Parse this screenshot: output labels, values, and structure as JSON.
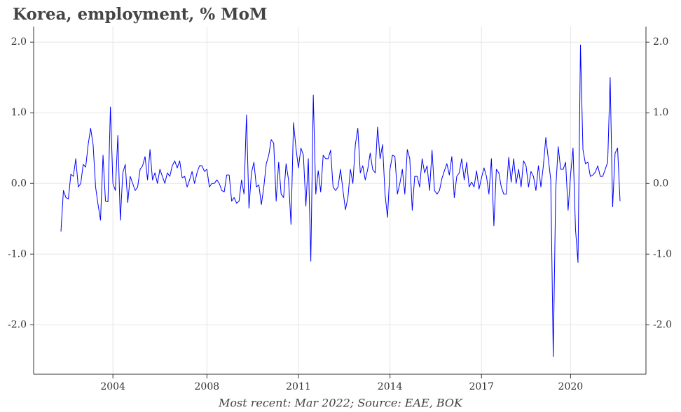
{
  "chart_data": {
    "type": "line",
    "title": "Korea, employment, % MoM",
    "caption": "Most recent: Mar 2022; Source: EAE, BOK",
    "categories": [
      null,
      null,
      null,
      null,
      null,
      null,
      null,
      null,
      null,
      null,
      null,
      null,
      null,
      null,
      null,
      null,
      null,
      null,
      null,
      null,
      null,
      "2004",
      null,
      null,
      null,
      null,
      null,
      null,
      null,
      null,
      null,
      null,
      null,
      null,
      null,
      null,
      null,
      null,
      null,
      null,
      null,
      null,
      null,
      null,
      null,
      null,
      null,
      null,
      null,
      null,
      null,
      null,
      null,
      null,
      null,
      null,
      null,
      null,
      null,
      "2008",
      null,
      null,
      null,
      null,
      null,
      null,
      null,
      null,
      null,
      null,
      null,
      null,
      null,
      null,
      null,
      null,
      null,
      null,
      null,
      null,
      null,
      null,
      null,
      null,
      null,
      null,
      null,
      null,
      null,
      null,
      null,
      null,
      null,
      null,
      null,
      null,
      "2011",
      null,
      null,
      null,
      null,
      null,
      null,
      null,
      null,
      null,
      null,
      null,
      null,
      null,
      null,
      null,
      null,
      null,
      null,
      null,
      null,
      null,
      null,
      null,
      null,
      null,
      null,
      null,
      null,
      null,
      null,
      null,
      null,
      null,
      null,
      null,
      null,
      "2014",
      null,
      null,
      null,
      null,
      null,
      null,
      null,
      null,
      null,
      null,
      null,
      null,
      null,
      null,
      null,
      null,
      null,
      null,
      null,
      null,
      null,
      null,
      null,
      null,
      null,
      null,
      null,
      null,
      null,
      null,
      null,
      null,
      null,
      null,
      null,
      null,
      "2017",
      null,
      null,
      null,
      null,
      null,
      null,
      null,
      null,
      null,
      null,
      null,
      null,
      null,
      null,
      null,
      null,
      null,
      null,
      null,
      null,
      null,
      null,
      null,
      null,
      null,
      null,
      null,
      null,
      null,
      null,
      null,
      null,
      null,
      null,
      null,
      "2020",
      null,
      null,
      null,
      null,
      null,
      null,
      null,
      null,
      null,
      null,
      null,
      null,
      null,
      null,
      null,
      null,
      null,
      null,
      null,
      null
    ],
    "series": [
      {
        "color": "#0000ff",
        "values": [
          -0.68,
          -0.1,
          -0.2,
          -0.22,
          0.13,
          0.1,
          0.35,
          -0.05,
          0,
          0.27,
          0.23,
          0.55,
          0.78,
          0.55,
          -0.05,
          -0.3,
          -0.52,
          0.4,
          -0.25,
          -0.26,
          1.08,
          0,
          -0.1,
          0.68,
          -0.52,
          0.15,
          0.27,
          -0.27,
          0.1,
          0,
          -0.1,
          -0.05,
          0.2,
          0.25,
          0.38,
          0.05,
          0.48,
          0.05,
          0.15,
          0,
          0.2,
          0.1,
          0,
          0.15,
          0.1,
          0.25,
          0.32,
          0.22,
          0.32,
          0.08,
          0.1,
          -0.05,
          0.05,
          0.17,
          0,
          0.15,
          0.25,
          0.25,
          0.17,
          0.2,
          -0.05,
          0,
          0,
          0.05,
          0,
          -0.1,
          -0.12,
          0.12,
          0.12,
          -0.25,
          -0.2,
          -0.28,
          -0.25,
          0.05,
          -0.15,
          0.97,
          -0.35,
          0.15,
          0.3,
          -0.05,
          -0.02,
          -0.3,
          -0.05,
          0.28,
          0.4,
          0.62,
          0.57,
          -0.25,
          0.3,
          -0.15,
          -0.2,
          0.28,
          0.05,
          -0.58,
          0.86,
          0.5,
          0.22,
          0.5,
          0.4,
          -0.32,
          0.35,
          -1.1,
          1.25,
          -0.15,
          0.18,
          -0.12,
          0.4,
          0.35,
          0.35,
          0.47,
          -0.05,
          -0.1,
          -0.05,
          0.2,
          -0.1,
          -0.37,
          -0.2,
          0.2,
          0,
          0.55,
          0.78,
          0.15,
          0.25,
          0.05,
          0.2,
          0.43,
          0.2,
          0.15,
          0.8,
          0.35,
          0.55,
          -0.15,
          -0.48,
          0.2,
          0.4,
          0.38,
          -0.15,
          0,
          0.2,
          -0.15,
          0.48,
          0.35,
          -0.38,
          0.1,
          0.1,
          -0.05,
          0.35,
          0.15,
          0.25,
          -0.1,
          0.47,
          -0.1,
          -0.15,
          -0.1,
          0.07,
          0.18,
          0.28,
          0.12,
          0.38,
          -0.2,
          0.1,
          0.15,
          0.35,
          0.05,
          0.3,
          -0.05,
          0.02,
          -0.05,
          0.18,
          -0.08,
          0.08,
          0.22,
          0.1,
          -0.15,
          0.35,
          -0.6,
          0.2,
          0.15,
          -0.05,
          -0.15,
          -0.15,
          0.37,
          0.02,
          0.35,
          0,
          0.2,
          -0.05,
          0.32,
          0.25,
          -0.05,
          0.17,
          0.1,
          -0.1,
          0.25,
          -0.05,
          0.25,
          0.65,
          0.35,
          0.05,
          -2.45,
          -0.08,
          0.52,
          0.2,
          0.2,
          0.3,
          -0.38,
          0.12,
          0.5,
          -0.65,
          -1.12,
          1.96,
          0.48,
          0.28,
          0.3,
          0.1,
          0.12,
          0.16,
          0.25,
          0.1,
          0.1,
          0.2,
          0.3,
          1.5,
          -0.33,
          0.43,
          0.5,
          -0.25
        ]
      }
    ],
    "ylim": [
      -2.7,
      2.22
    ],
    "yticks": [
      {
        "value": -2,
        "label": "-2.0"
      },
      {
        "value": -1,
        "label": "-1.0"
      },
      {
        "value": 0,
        "label": "0.0"
      },
      {
        "value": 1,
        "label": "1.0"
      },
      {
        "value": 2,
        "label": "2.0"
      }
    ],
    "grid": true
  }
}
